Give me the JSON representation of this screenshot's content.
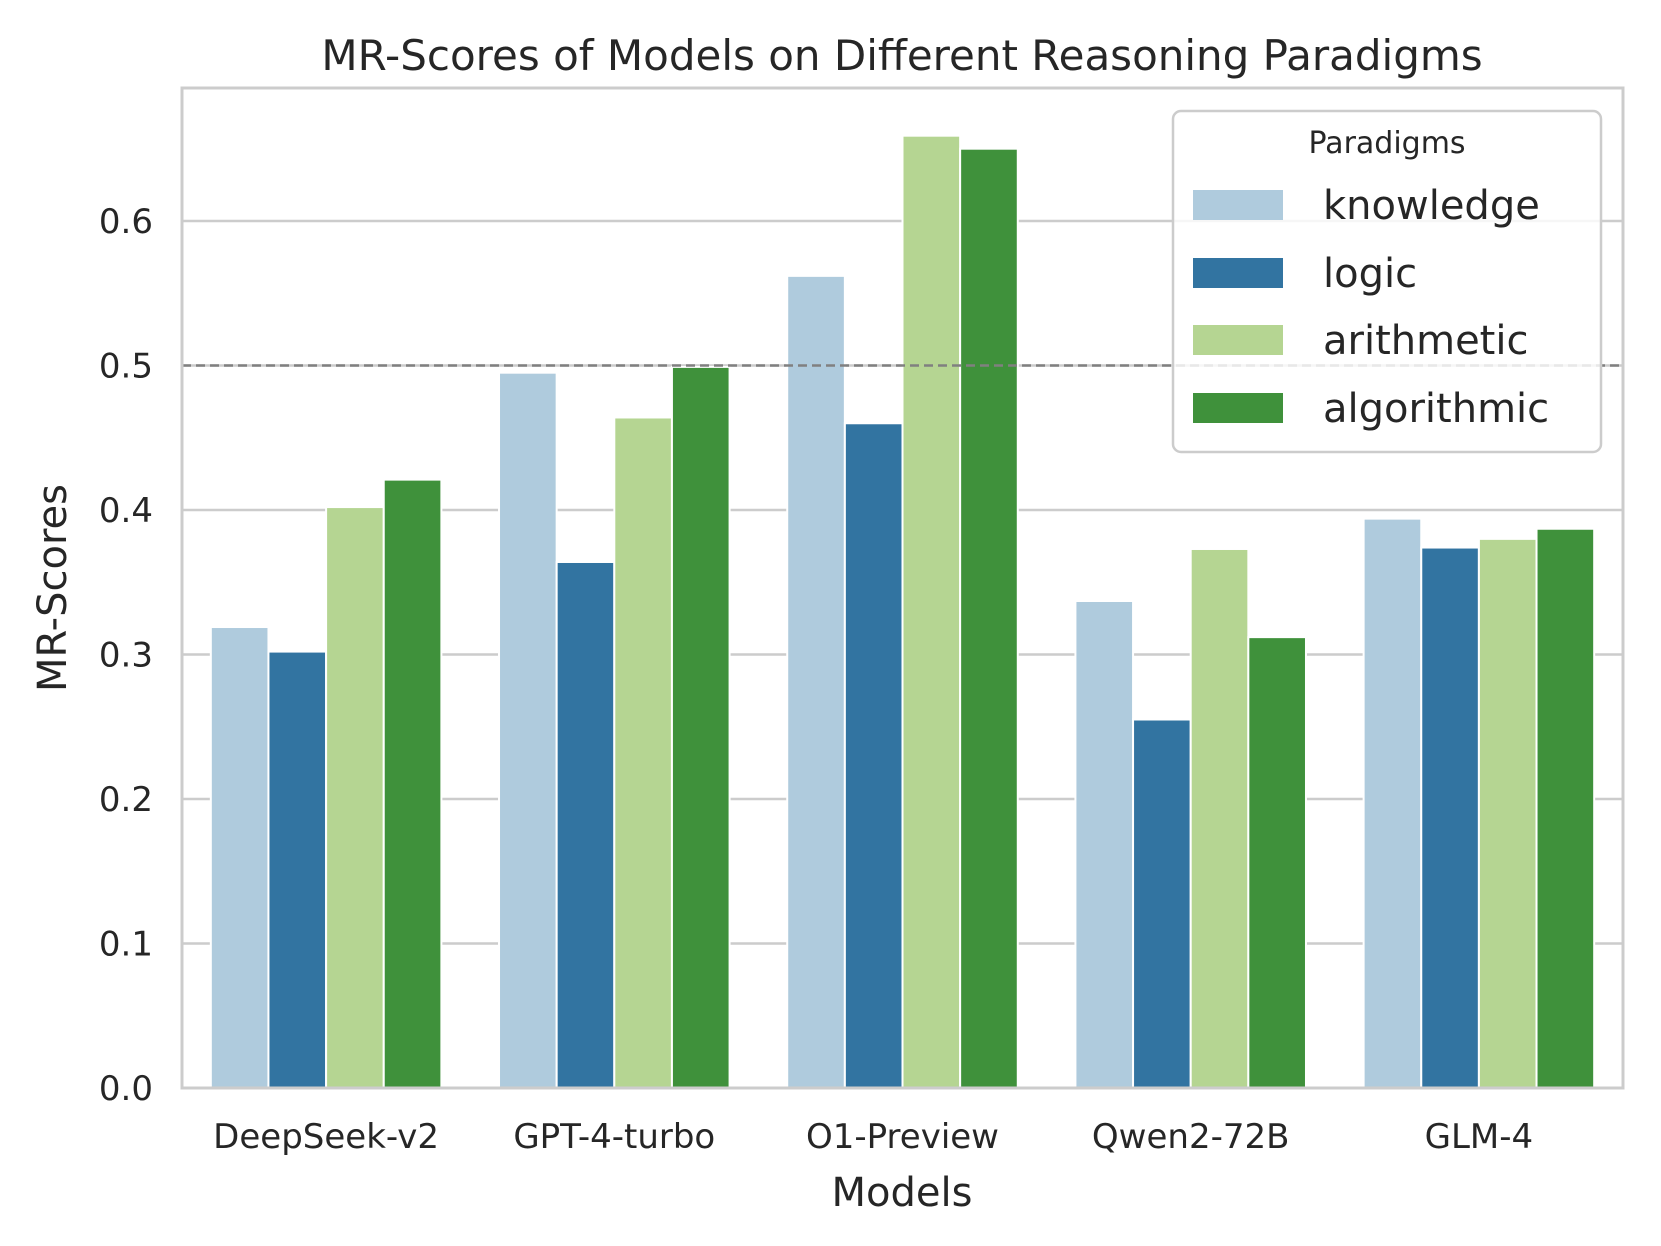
{
  "chart_data": {
    "type": "bar",
    "title": "MR-Scores of Models on Different Reasoning Paradigms",
    "xlabel": "Models",
    "ylabel": "MR-Scores",
    "categories": [
      "DeepSeek-v2",
      "GPT-4-turbo",
      "O1-Preview",
      "Qwen2-72B",
      "GLM-4"
    ],
    "series": [
      {
        "name": "knowledge",
        "color": "#afcbdd",
        "values": [
          0.319,
          0.495,
          0.562,
          0.337,
          0.394
        ]
      },
      {
        "name": "logic",
        "color": "#3274a1",
        "values": [
          0.302,
          0.364,
          0.46,
          0.255,
          0.374
        ]
      },
      {
        "name": "arithmetic",
        "color": "#b5d592",
        "values": [
          0.402,
          0.464,
          0.659,
          0.373,
          0.38
        ]
      },
      {
        "name": "algorithmic",
        "color": "#3f913b",
        "values": [
          0.421,
          0.499,
          0.65,
          0.312,
          0.387
        ]
      }
    ],
    "ylim": [
      0,
      0.692
    ],
    "yticks": [
      0.0,
      0.1,
      0.2,
      0.3,
      0.4,
      0.5,
      0.6
    ],
    "ytick_labels": [
      "0.0",
      "0.1",
      "0.2",
      "0.3",
      "0.4",
      "0.5",
      "0.6"
    ],
    "grid": true,
    "reference_line": {
      "y": 0.5,
      "style": "dashed",
      "color": "#808080"
    },
    "legend": {
      "title": "Paradigms",
      "placement": "top-right",
      "entries": [
        "knowledge",
        "logic",
        "arithmetic",
        "algorithmic"
      ]
    }
  }
}
